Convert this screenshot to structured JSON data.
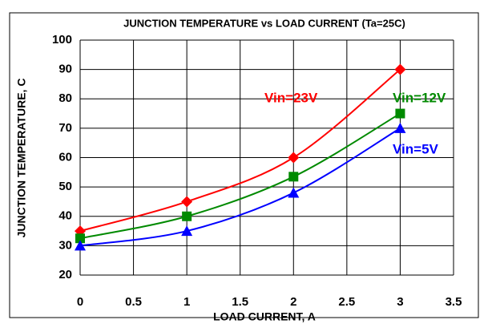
{
  "chart_data": {
    "type": "line",
    "title": "JUNCTION TEMPERATURE vs LOAD CURRENT (Ta=25C)",
    "xlabel": "LOAD CURRENT, A",
    "ylabel": "JUNCTION TEMPERATURE, C",
    "x": [
      0,
      1,
      2,
      3
    ],
    "series": [
      {
        "name": "Vin=23V",
        "color": "#ff0000",
        "marker": "diamond",
        "values": [
          35,
          45,
          60,
          90
        ]
      },
      {
        "name": "Vin=12V",
        "color": "#008a00",
        "marker": "square",
        "values": [
          32.5,
          40,
          53.5,
          75
        ]
      },
      {
        "name": "Vin=5V",
        "color": "#0000ff",
        "marker": "triangle",
        "values": [
          30,
          35,
          48,
          70
        ]
      }
    ],
    "xlim": [
      0,
      3.5
    ],
    "xticks": [
      0,
      0.5,
      1,
      1.5,
      2,
      2.5,
      3,
      3.5
    ],
    "ylim": [
      20,
      100
    ],
    "yticks": [
      20,
      30,
      40,
      50,
      60,
      70,
      80,
      90,
      100
    ],
    "grid": true
  }
}
